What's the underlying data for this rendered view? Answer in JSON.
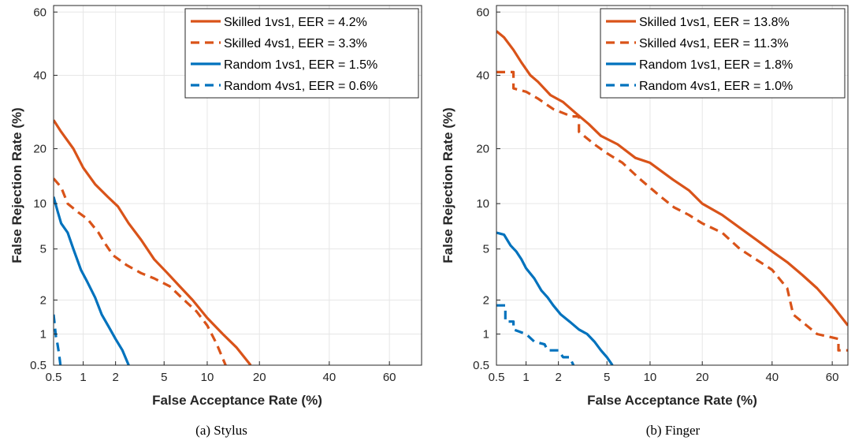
{
  "chart_data": [
    {
      "type": "line",
      "caption": "(a) Stylus",
      "xlabel": "False Acceptance Rate (%)",
      "ylabel": "False Rejection Rate (%)",
      "xscale": "normal-deviate",
      "yscale": "normal-deviate",
      "xlim": [
        0.5,
        70
      ],
      "ylim": [
        0.5,
        62
      ],
      "xticks": [
        0.5,
        1,
        2,
        5,
        10,
        20,
        40,
        60
      ],
      "yticks": [
        0.5,
        1,
        2,
        5,
        10,
        20,
        40,
        60
      ],
      "xtick_labels": [
        "0.5",
        "1",
        "2",
        "5",
        "10",
        "20",
        "40",
        "60"
      ],
      "ytick_labels": [
        "0.5",
        "1",
        "2",
        "5",
        "10",
        "20",
        "40",
        "60"
      ],
      "grid": true,
      "legend_position": "top-right",
      "series": [
        {
          "name": "Skilled 1vs1, EER = 4.2%",
          "color": "#D95319",
          "style": "solid",
          "points": [
            [
              0.5,
              27
            ],
            [
              0.6,
              24
            ],
            [
              0.8,
              20
            ],
            [
              1.0,
              16
            ],
            [
              1.3,
              13
            ],
            [
              1.7,
              11
            ],
            [
              2.1,
              9.6
            ],
            [
              2.6,
              7.5
            ],
            [
              3.3,
              5.8
            ],
            [
              4.2,
              4.2
            ],
            [
              5.3,
              3.3
            ],
            [
              6.5,
              2.6
            ],
            [
              8,
              2
            ],
            [
              10,
              1.4
            ],
            [
              12.5,
              1
            ],
            [
              15,
              0.75
            ],
            [
              18,
              0.5
            ]
          ]
        },
        {
          "name": "Skilled 4vs1, EER = 3.3%",
          "color": "#D95319",
          "style": "dashed",
          "points": [
            [
              0.5,
              14
            ],
            [
              0.6,
              12.5
            ],
            [
              0.7,
              10
            ],
            [
              0.9,
              8.8
            ],
            [
              1.1,
              8
            ],
            [
              1.4,
              6.5
            ],
            [
              1.6,
              5.5
            ],
            [
              1.9,
              4.5
            ],
            [
              2.5,
              3.8
            ],
            [
              3.3,
              3.3
            ],
            [
              4.2,
              3
            ],
            [
              5.5,
              2.6
            ],
            [
              7,
              2
            ],
            [
              8.5,
              1.6
            ],
            [
              10,
              1.2
            ],
            [
              11.5,
              0.8
            ],
            [
              13,
              0.5
            ]
          ]
        },
        {
          "name": "Random 1vs1, EER = 1.5%",
          "color": "#0072BD",
          "style": "solid",
          "points": [
            [
              0.5,
              11
            ],
            [
              0.55,
              9
            ],
            [
              0.6,
              7.5
            ],
            [
              0.7,
              6.5
            ],
            [
              0.8,
              5
            ],
            [
              0.95,
              3.5
            ],
            [
              1.1,
              2.8
            ],
            [
              1.3,
              2.1
            ],
            [
              1.5,
              1.5
            ],
            [
              1.75,
              1.15
            ],
            [
              2.0,
              0.9
            ],
            [
              2.3,
              0.7
            ],
            [
              2.6,
              0.5
            ]
          ]
        },
        {
          "name": "Random 4vs1, EER = 0.6%",
          "color": "#0072BD",
          "style": "dashed",
          "points": [
            [
              0.5,
              1.5
            ],
            [
              0.51,
              1.3
            ],
            [
              0.52,
              1.1
            ],
            [
              0.53,
              0.95
            ],
            [
              0.55,
              0.8
            ],
            [
              0.57,
              0.65
            ],
            [
              0.59,
              0.5
            ]
          ]
        }
      ]
    },
    {
      "type": "line",
      "caption": "(b) Finger",
      "xlabel": "False Acceptance Rate (%)",
      "ylabel": "False Rejection Rate (%)",
      "xscale": "normal-deviate",
      "yscale": "normal-deviate",
      "xlim": [
        0.5,
        65
      ],
      "ylim": [
        0.5,
        62
      ],
      "xticks": [
        0.5,
        1,
        2,
        5,
        10,
        20,
        40,
        60
      ],
      "yticks": [
        0.5,
        1,
        2,
        5,
        10,
        20,
        40,
        60
      ],
      "xtick_labels": [
        "0.5",
        "1",
        "2",
        "5",
        "10",
        "20",
        "40",
        "60"
      ],
      "ytick_labels": [
        "0.5",
        "1",
        "2",
        "5",
        "10",
        "20",
        "40",
        "60"
      ],
      "grid": true,
      "legend_position": "top-right",
      "series": [
        {
          "name": "Skilled 1vs1, EER = 13.8%",
          "color": "#D95319",
          "style": "solid",
          "points": [
            [
              0.5,
              54
            ],
            [
              0.6,
              52
            ],
            [
              0.75,
              48
            ],
            [
              0.9,
              44
            ],
            [
              1.1,
              40
            ],
            [
              1.3,
              38
            ],
            [
              1.7,
              34
            ],
            [
              2.2,
              32
            ],
            [
              2.8,
              29
            ],
            [
              3.6,
              26
            ],
            [
              4.5,
              23
            ],
            [
              6,
              21
            ],
            [
              8,
              18
            ],
            [
              10,
              17
            ],
            [
              13.8,
              13.8
            ],
            [
              17,
              12
            ],
            [
              20,
              10
            ],
            [
              25,
              8.5
            ],
            [
              30,
              7
            ],
            [
              35,
              5.8
            ],
            [
              40,
              4.8
            ],
            [
              45,
              4
            ],
            [
              50,
              3.2
            ],
            [
              55,
              2.5
            ],
            [
              60,
              1.8
            ],
            [
              65,
              1.2
            ]
          ]
        },
        {
          "name": "Skilled 4vs1, EER = 11.3%",
          "color": "#D95319",
          "style": "dashed",
          "points": [
            [
              0.5,
              41
            ],
            [
              0.75,
              41
            ],
            [
              0.75,
              36
            ],
            [
              1.0,
              35
            ],
            [
              1.3,
              33
            ],
            [
              1.8,
              30
            ],
            [
              2.6,
              28
            ],
            [
              3.0,
              28
            ],
            [
              3.0,
              24
            ],
            [
              4.0,
              21
            ],
            [
              5.0,
              19
            ],
            [
              6.5,
              17
            ],
            [
              8.5,
              14
            ],
            [
              11.3,
              11.3
            ],
            [
              14,
              9.5
            ],
            [
              17,
              8.5
            ],
            [
              20,
              7.5
            ],
            [
              25,
              6.5
            ],
            [
              30,
              5
            ],
            [
              40,
              3.5
            ],
            [
              45,
              2.5
            ],
            [
              47,
              1.5
            ],
            [
              55,
              1
            ],
            [
              62,
              0.9
            ],
            [
              62,
              0.7
            ],
            [
              65,
              0.7
            ]
          ]
        },
        {
          "name": "Random 1vs1, EER = 1.8%",
          "color": "#0072BD",
          "style": "solid",
          "points": [
            [
              0.5,
              6.5
            ],
            [
              0.6,
              6.3
            ],
            [
              0.7,
              5.3
            ],
            [
              0.8,
              4.8
            ],
            [
              0.9,
              4.2
            ],
            [
              1.0,
              3.6
            ],
            [
              1.2,
              3
            ],
            [
              1.4,
              2.4
            ],
            [
              1.6,
              2.1
            ],
            [
              1.8,
              1.8
            ],
            [
              2.1,
              1.5
            ],
            [
              2.5,
              1.3
            ],
            [
              3,
              1.1
            ],
            [
              3.5,
              1.0
            ],
            [
              4,
              0.85
            ],
            [
              4.5,
              0.7
            ],
            [
              5,
              0.6
            ],
            [
              5.5,
              0.5
            ]
          ]
        },
        {
          "name": "Random 4vs1, EER = 1.0%",
          "color": "#0072BD",
          "style": "dashed",
          "points": [
            [
              0.5,
              1.8
            ],
            [
              0.62,
              1.8
            ],
            [
              0.62,
              1.3
            ],
            [
              0.75,
              1.3
            ],
            [
              0.75,
              1.1
            ],
            [
              1.0,
              1.0
            ],
            [
              1.2,
              0.85
            ],
            [
              1.5,
              0.8
            ],
            [
              1.6,
              0.7
            ],
            [
              2.0,
              0.7
            ],
            [
              2.2,
              0.6
            ],
            [
              2.5,
              0.6
            ],
            [
              2.7,
              0.5
            ]
          ]
        }
      ]
    }
  ]
}
